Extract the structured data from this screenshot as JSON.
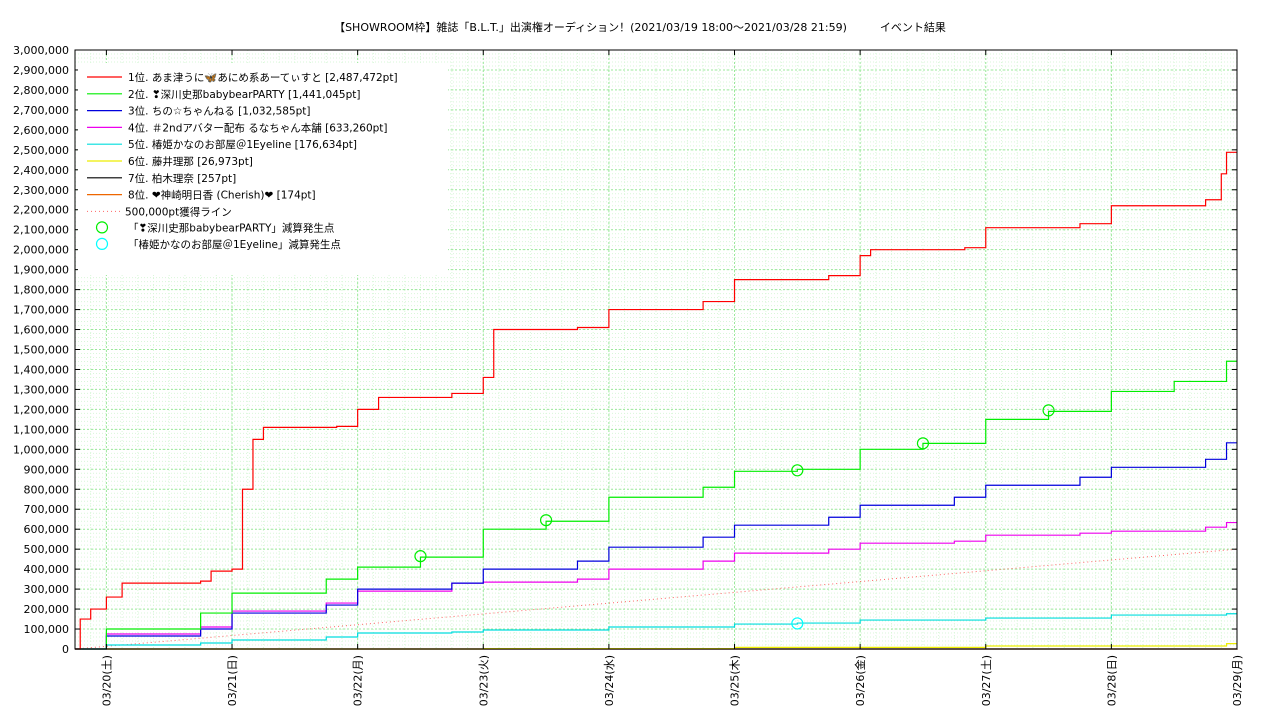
{
  "chart_data": {
    "type": "line",
    "title": "【SHOWROOM枠】雑誌「B.L.T.」出演権オーディション！(2021/03/19 18:00～2021/03/28 21:59)　　　イベント結果",
    "xlabel": "",
    "ylabel": "",
    "x_ticks": [
      "03/20(土)",
      "03/21(日)",
      "03/22(月)",
      "03/23(火)",
      "03/24(水)",
      "03/25(木)",
      "03/26(金)",
      "03/27(土)",
      "03/28(日)",
      "03/29(月)"
    ],
    "y_ticks": [
      "0",
      "100,000",
      "200,000",
      "300,000",
      "400,000",
      "500,000",
      "600,000",
      "700,000",
      "800,000",
      "900,000",
      "1,000,000",
      "1,100,000",
      "1,200,000",
      "1,300,000",
      "1,400,000",
      "1,500,000",
      "1,600,000",
      "1,700,000",
      "1,800,000",
      "1,900,000",
      "2,000,000",
      "2,100,000",
      "2,200,000",
      "2,300,000",
      "2,400,000",
      "2,500,000",
      "2,600,000",
      "2,700,000",
      "2,800,000",
      "2,900,000",
      "3,000,000"
    ],
    "ylim": [
      0,
      3000000
    ],
    "xlim": [
      "2021-03-19 18:00",
      "2021-03-29 00:00"
    ],
    "grid": true,
    "legend_position": "top-left",
    "series": [
      {
        "name": "1位. あま津うに🦋あにめ系あーてぃすと [2,487,472pt]",
        "color": "#ff0000",
        "points": [
          [
            "2021-03-19 18:00",
            0
          ],
          [
            "2021-03-19 19:00",
            150000
          ],
          [
            "2021-03-19 21:00",
            200000
          ],
          [
            "2021-03-20 00:00",
            260000
          ],
          [
            "2021-03-20 03:00",
            330000
          ],
          [
            "2021-03-20 18:00",
            340000
          ],
          [
            "2021-03-20 20:00",
            390000
          ],
          [
            "2021-03-21 00:00",
            400000
          ],
          [
            "2021-03-21 02:00",
            800000
          ],
          [
            "2021-03-21 04:00",
            1050000
          ],
          [
            "2021-03-21 06:00",
            1110000
          ],
          [
            "2021-03-21 20:00",
            1115000
          ],
          [
            "2021-03-22 00:00",
            1200000
          ],
          [
            "2021-03-22 04:00",
            1260000
          ],
          [
            "2021-03-22 18:00",
            1280000
          ],
          [
            "2021-03-23 00:00",
            1360000
          ],
          [
            "2021-03-23 02:00",
            1600000
          ],
          [
            "2021-03-23 18:00",
            1610000
          ],
          [
            "2021-03-24 00:00",
            1700000
          ],
          [
            "2021-03-24 18:00",
            1740000
          ],
          [
            "2021-03-25 00:00",
            1850000
          ],
          [
            "2021-03-25 18:00",
            1870000
          ],
          [
            "2021-03-26 00:00",
            1970000
          ],
          [
            "2021-03-26 02:00",
            2000000
          ],
          [
            "2021-03-26 20:00",
            2010000
          ],
          [
            "2021-03-27 00:00",
            2110000
          ],
          [
            "2021-03-27 18:00",
            2130000
          ],
          [
            "2021-03-28 00:00",
            2220000
          ],
          [
            "2021-03-28 18:00",
            2250000
          ],
          [
            "2021-03-28 21:00",
            2380000
          ],
          [
            "2021-03-28 22:00",
            2487472
          ],
          [
            "2021-03-29 00:00",
            2487472
          ]
        ]
      },
      {
        "name": "2位. ❣深川史那babybearPARTY [1,441,045pt]",
        "color": "#00ee00",
        "points": [
          [
            "2021-03-19 18:00",
            0
          ],
          [
            "2021-03-20 00:00",
            100000
          ],
          [
            "2021-03-20 18:00",
            180000
          ],
          [
            "2021-03-21 00:00",
            280000
          ],
          [
            "2021-03-21 18:00",
            350000
          ],
          [
            "2021-03-22 00:00",
            410000
          ],
          [
            "2021-03-22 12:00",
            460000
          ],
          [
            "2021-03-23 00:00",
            600000
          ],
          [
            "2021-03-23 12:00",
            640000
          ],
          [
            "2021-03-24 00:00",
            760000
          ],
          [
            "2021-03-24 18:00",
            810000
          ],
          [
            "2021-03-25 00:00",
            890000
          ],
          [
            "2021-03-25 12:00",
            900000
          ],
          [
            "2021-03-26 00:00",
            1000000
          ],
          [
            "2021-03-26 12:00",
            1030000
          ],
          [
            "2021-03-27 00:00",
            1150000
          ],
          [
            "2021-03-27 12:00",
            1190000
          ],
          [
            "2021-03-28 00:00",
            1290000
          ],
          [
            "2021-03-28 12:00",
            1340000
          ],
          [
            "2021-03-28 22:00",
            1441045
          ],
          [
            "2021-03-29 00:00",
            1441045
          ]
        ]
      },
      {
        "name": "3位. ちの☆ちゃんねる [1,032,585pt]",
        "color": "#0000dd",
        "points": [
          [
            "2021-03-19 18:00",
            0
          ],
          [
            "2021-03-20 00:00",
            65000
          ],
          [
            "2021-03-20 18:00",
            100000
          ],
          [
            "2021-03-21 00:00",
            180000
          ],
          [
            "2021-03-21 18:00",
            220000
          ],
          [
            "2021-03-22 00:00",
            300000
          ],
          [
            "2021-03-22 18:00",
            330000
          ],
          [
            "2021-03-23 00:00",
            400000
          ],
          [
            "2021-03-23 18:00",
            440000
          ],
          [
            "2021-03-24 00:00",
            510000
          ],
          [
            "2021-03-24 18:00",
            560000
          ],
          [
            "2021-03-25 00:00",
            620000
          ],
          [
            "2021-03-25 18:00",
            660000
          ],
          [
            "2021-03-26 00:00",
            720000
          ],
          [
            "2021-03-26 18:00",
            760000
          ],
          [
            "2021-03-27 00:00",
            820000
          ],
          [
            "2021-03-27 18:00",
            860000
          ],
          [
            "2021-03-28 00:00",
            910000
          ],
          [
            "2021-03-28 18:00",
            950000
          ],
          [
            "2021-03-28 22:00",
            1032585
          ],
          [
            "2021-03-29 00:00",
            1032585
          ]
        ]
      },
      {
        "name": "4位. ＃2ndアバター配布 るなちゃん本舗 [633,260pt]",
        "color": "#ee00ee",
        "points": [
          [
            "2021-03-19 18:00",
            0
          ],
          [
            "2021-03-20 00:00",
            75000
          ],
          [
            "2021-03-20 18:00",
            110000
          ],
          [
            "2021-03-21 00:00",
            190000
          ],
          [
            "2021-03-21 18:00",
            230000
          ],
          [
            "2021-03-22 00:00",
            290000
          ],
          [
            "2021-03-22 18:00",
            330000
          ],
          [
            "2021-03-23 00:00",
            335000
          ],
          [
            "2021-03-23 18:00",
            350000
          ],
          [
            "2021-03-24 00:00",
            400000
          ],
          [
            "2021-03-24 18:00",
            440000
          ],
          [
            "2021-03-25 00:00",
            480000
          ],
          [
            "2021-03-25 18:00",
            500000
          ],
          [
            "2021-03-26 00:00",
            530000
          ],
          [
            "2021-03-26 18:00",
            540000
          ],
          [
            "2021-03-27 00:00",
            570000
          ],
          [
            "2021-03-27 18:00",
            580000
          ],
          [
            "2021-03-28 00:00",
            590000
          ],
          [
            "2021-03-28 18:00",
            610000
          ],
          [
            "2021-03-28 22:00",
            633260
          ],
          [
            "2021-03-29 00:00",
            633260
          ]
        ]
      },
      {
        "name": "5位. 椿姫かなのお部屋＠1Eyeline [176,634pt]",
        "color": "#00dddd",
        "points": [
          [
            "2021-03-19 18:00",
            0
          ],
          [
            "2021-03-20 00:00",
            20000
          ],
          [
            "2021-03-20 18:00",
            30000
          ],
          [
            "2021-03-21 00:00",
            45000
          ],
          [
            "2021-03-21 18:00",
            60000
          ],
          [
            "2021-03-22 00:00",
            80000
          ],
          [
            "2021-03-22 18:00",
            85000
          ],
          [
            "2021-03-23 00:00",
            95000
          ],
          [
            "2021-03-24 00:00",
            110000
          ],
          [
            "2021-03-25 00:00",
            125000
          ],
          [
            "2021-03-25 12:00",
            130000
          ],
          [
            "2021-03-26 00:00",
            145000
          ],
          [
            "2021-03-27 00:00",
            155000
          ],
          [
            "2021-03-28 00:00",
            170000
          ],
          [
            "2021-03-28 22:00",
            176634
          ],
          [
            "2021-03-29 00:00",
            176634
          ]
        ]
      },
      {
        "name": "6位. 藤井理那 [26,973pt]",
        "color": "#eeee00",
        "points": [
          [
            "2021-03-19 18:00",
            0
          ],
          [
            "2021-03-23 00:00",
            2000
          ],
          [
            "2021-03-25 00:00",
            8000
          ],
          [
            "2021-03-27 00:00",
            15000
          ],
          [
            "2021-03-28 22:00",
            26973
          ],
          [
            "2021-03-29 00:00",
            26973
          ]
        ]
      },
      {
        "name": "7位. 柏木理奈 [257pt]",
        "color": "#000000",
        "points": [
          [
            "2021-03-19 18:00",
            0
          ],
          [
            "2021-03-29 00:00",
            257
          ]
        ]
      },
      {
        "name": "8位. ❤神崎明日香 (Cherish)❤ [174pt]",
        "color": "#ee6600",
        "points": [
          [
            "2021-03-19 18:00",
            0
          ],
          [
            "2021-03-29 00:00",
            174
          ]
        ]
      }
    ],
    "reference_line": {
      "name": "500,000pt獲得ライン",
      "color": "#ff6666",
      "points": [
        [
          "2021-03-19 18:00",
          0
        ],
        [
          "2021-03-29 00:00",
          500000
        ]
      ]
    },
    "markers": [
      {
        "name": "「❣深川史那babybearPARTY」減算発生点",
        "color": "#00ee00",
        "points": [
          [
            "2021-03-22 12:00",
            465000
          ],
          [
            "2021-03-23 12:00",
            645000
          ],
          [
            "2021-03-25 12:00",
            895000
          ],
          [
            "2021-03-26 12:00",
            1030000
          ],
          [
            "2021-03-27 12:00",
            1195000
          ]
        ]
      },
      {
        "name": "「椿姫かなのお部屋＠1Eyeline」減算発生点",
        "color": "#00ffff",
        "points": [
          [
            "2021-03-25 12:00",
            128000
          ]
        ]
      }
    ]
  }
}
